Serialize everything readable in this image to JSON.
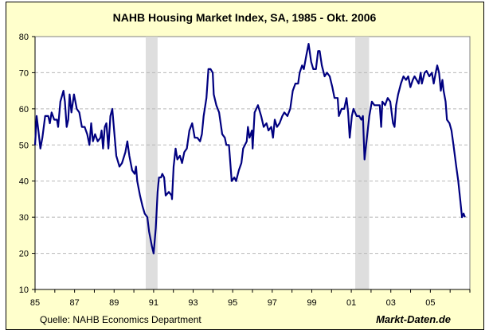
{
  "chart_data": {
    "type": "line",
    "title": "NAHB Housing Market Index, SA, 1985 - Okt. 2006",
    "xlabel": "",
    "ylabel": "",
    "xlim": [
      1985,
      2007
    ],
    "ylim": [
      10,
      80
    ],
    "yticks": [
      10,
      20,
      30,
      40,
      50,
      60,
      70,
      80
    ],
    "xtick_labels": [
      "85",
      "87",
      "89",
      "91",
      "93",
      "95",
      "97",
      "99",
      "01",
      "03",
      "05"
    ],
    "xtick_years": [
      1985,
      1987,
      1989,
      1991,
      1993,
      1995,
      1997,
      1999,
      2001,
      2003,
      2005
    ],
    "grid": "horizontal dashed",
    "line_color": "#000080",
    "background_color": "#FFFFCC",
    "recession_shading": [
      [
        1990.6,
        1991.2
      ],
      [
        2001.2,
        2001.9
      ]
    ],
    "series": [
      {
        "x": [
          1985.0,
          1985.08,
          1985.17,
          1985.27,
          1985.37,
          1985.51,
          1985.67,
          1985.75,
          1985.84,
          1985.97,
          1986.11,
          1986.17,
          1986.28,
          1986.44,
          1986.51,
          1986.6,
          1986.68,
          1986.75,
          1986.84,
          1986.97,
          1987.11,
          1987.24,
          1987.37,
          1987.51,
          1987.64,
          1987.75,
          1987.84,
          1987.93,
          1988.04,
          1988.17,
          1988.31,
          1988.37,
          1988.44,
          1988.53,
          1988.61,
          1988.71,
          1988.81,
          1988.91,
          1989.0,
          1989.11,
          1989.27,
          1989.4,
          1989.57,
          1989.67,
          1989.77,
          1989.91,
          1990.04,
          1990.11,
          1990.17,
          1990.31,
          1990.44,
          1990.55,
          1990.68,
          1990.77,
          1990.91,
          1991.0,
          1991.11,
          1991.2,
          1991.27,
          1991.37,
          1991.44,
          1991.53,
          1991.61,
          1991.77,
          1991.91,
          1991.93,
          1992.01,
          1992.11,
          1992.2,
          1992.33,
          1992.44,
          1992.55,
          1992.68,
          1992.81,
          1992.95,
          1993.08,
          1993.21,
          1993.35,
          1993.44,
          1993.53,
          1993.67,
          1993.77,
          1993.88,
          1993.99,
          1994.04,
          1994.17,
          1994.31,
          1994.47,
          1994.6,
          1994.68,
          1994.81,
          1994.95,
          1995.08,
          1995.17,
          1995.31,
          1995.44,
          1995.53,
          1995.71,
          1995.77,
          1995.85,
          1995.97,
          1996.01,
          1996.11,
          1996.28,
          1996.44,
          1996.57,
          1996.71,
          1996.81,
          1996.95,
          1997.04,
          1997.13,
          1997.24,
          1997.37,
          1997.51,
          1997.61,
          1997.77,
          1997.91,
          1998.04,
          1998.17,
          1998.31,
          1998.39,
          1998.51,
          1998.6,
          1998.73,
          1998.84,
          1998.97,
          1999.08,
          1999.21,
          1999.32,
          1999.4,
          1999.51,
          1999.65,
          1999.77,
          1999.91,
          2000.04,
          2000.15,
          2000.31,
          2000.37,
          2000.51,
          2000.64,
          2000.76,
          2000.84,
          2000.92,
          2001.03,
          2001.11,
          2001.27,
          2001.4,
          2001.51,
          2001.59,
          2001.67,
          2001.77,
          2001.91,
          2002.04,
          2002.17,
          2002.44,
          2002.51,
          2002.57,
          2002.71,
          2002.84,
          2002.97,
          2003.11,
          2003.19,
          2003.27,
          2003.37,
          2003.51,
          2003.64,
          2003.77,
          2003.88,
          2003.99,
          2004.11,
          2004.2,
          2004.31,
          2004.41,
          2004.51,
          2004.57,
          2004.71,
          2004.81,
          2004.95,
          2005.08,
          2005.17,
          2005.27,
          2005.35,
          2005.44,
          2005.53,
          2005.61,
          2005.67,
          2005.77,
          2005.84,
          2005.97,
          2006.07,
          2006.17,
          2006.31,
          2006.41,
          2006.51,
          2006.6,
          2006.68,
          2006.75
        ],
        "values": [
          50,
          58,
          54,
          49,
          52,
          58,
          58,
          56,
          59,
          57,
          57,
          55,
          62,
          65,
          62,
          55,
          57,
          64,
          59,
          64,
          60,
          59,
          55,
          55,
          53,
          50,
          56,
          51,
          53,
          51,
          52,
          54,
          49,
          55,
          56,
          49,
          58,
          60,
          54,
          47,
          44,
          45,
          48,
          51,
          47,
          43,
          42,
          44,
          40,
          36,
          33,
          31,
          30,
          26,
          22,
          20,
          27,
          37,
          41,
          41,
          42,
          41,
          36,
          37,
          36,
          35,
          44,
          49,
          46,
          47,
          45,
          48,
          49,
          54,
          56,
          52,
          52,
          51,
          53,
          58,
          63,
          71,
          71,
          70,
          64,
          61,
          59,
          53,
          52,
          50,
          50,
          40,
          41,
          40,
          43,
          45,
          49,
          51,
          55,
          52,
          54,
          49,
          59,
          61,
          58,
          55,
          56,
          54,
          55,
          52,
          57,
          55,
          56,
          58,
          59,
          58,
          60,
          65,
          67,
          67,
          70,
          72,
          71,
          75,
          78,
          73,
          71,
          71,
          76,
          76,
          72,
          69,
          70,
          69,
          66,
          63,
          63,
          58,
          60,
          60,
          63,
          59,
          52,
          58,
          60,
          58,
          58,
          57,
          58,
          46,
          51,
          58,
          62,
          61,
          61,
          55,
          62,
          61,
          63,
          62,
          56,
          55,
          61,
          64,
          67,
          69,
          68,
          69,
          66,
          68,
          69,
          68,
          67,
          70,
          67,
          70,
          70.5,
          69,
          70,
          67,
          70,
          72,
          70,
          65,
          68,
          65,
          62,
          57,
          56,
          54,
          50,
          44,
          40,
          35,
          30,
          31,
          30
        ]
      }
    ]
  },
  "footer": {
    "source": "Quelle: NAHB Economics Department",
    "brand": "Markt-Daten.de"
  }
}
